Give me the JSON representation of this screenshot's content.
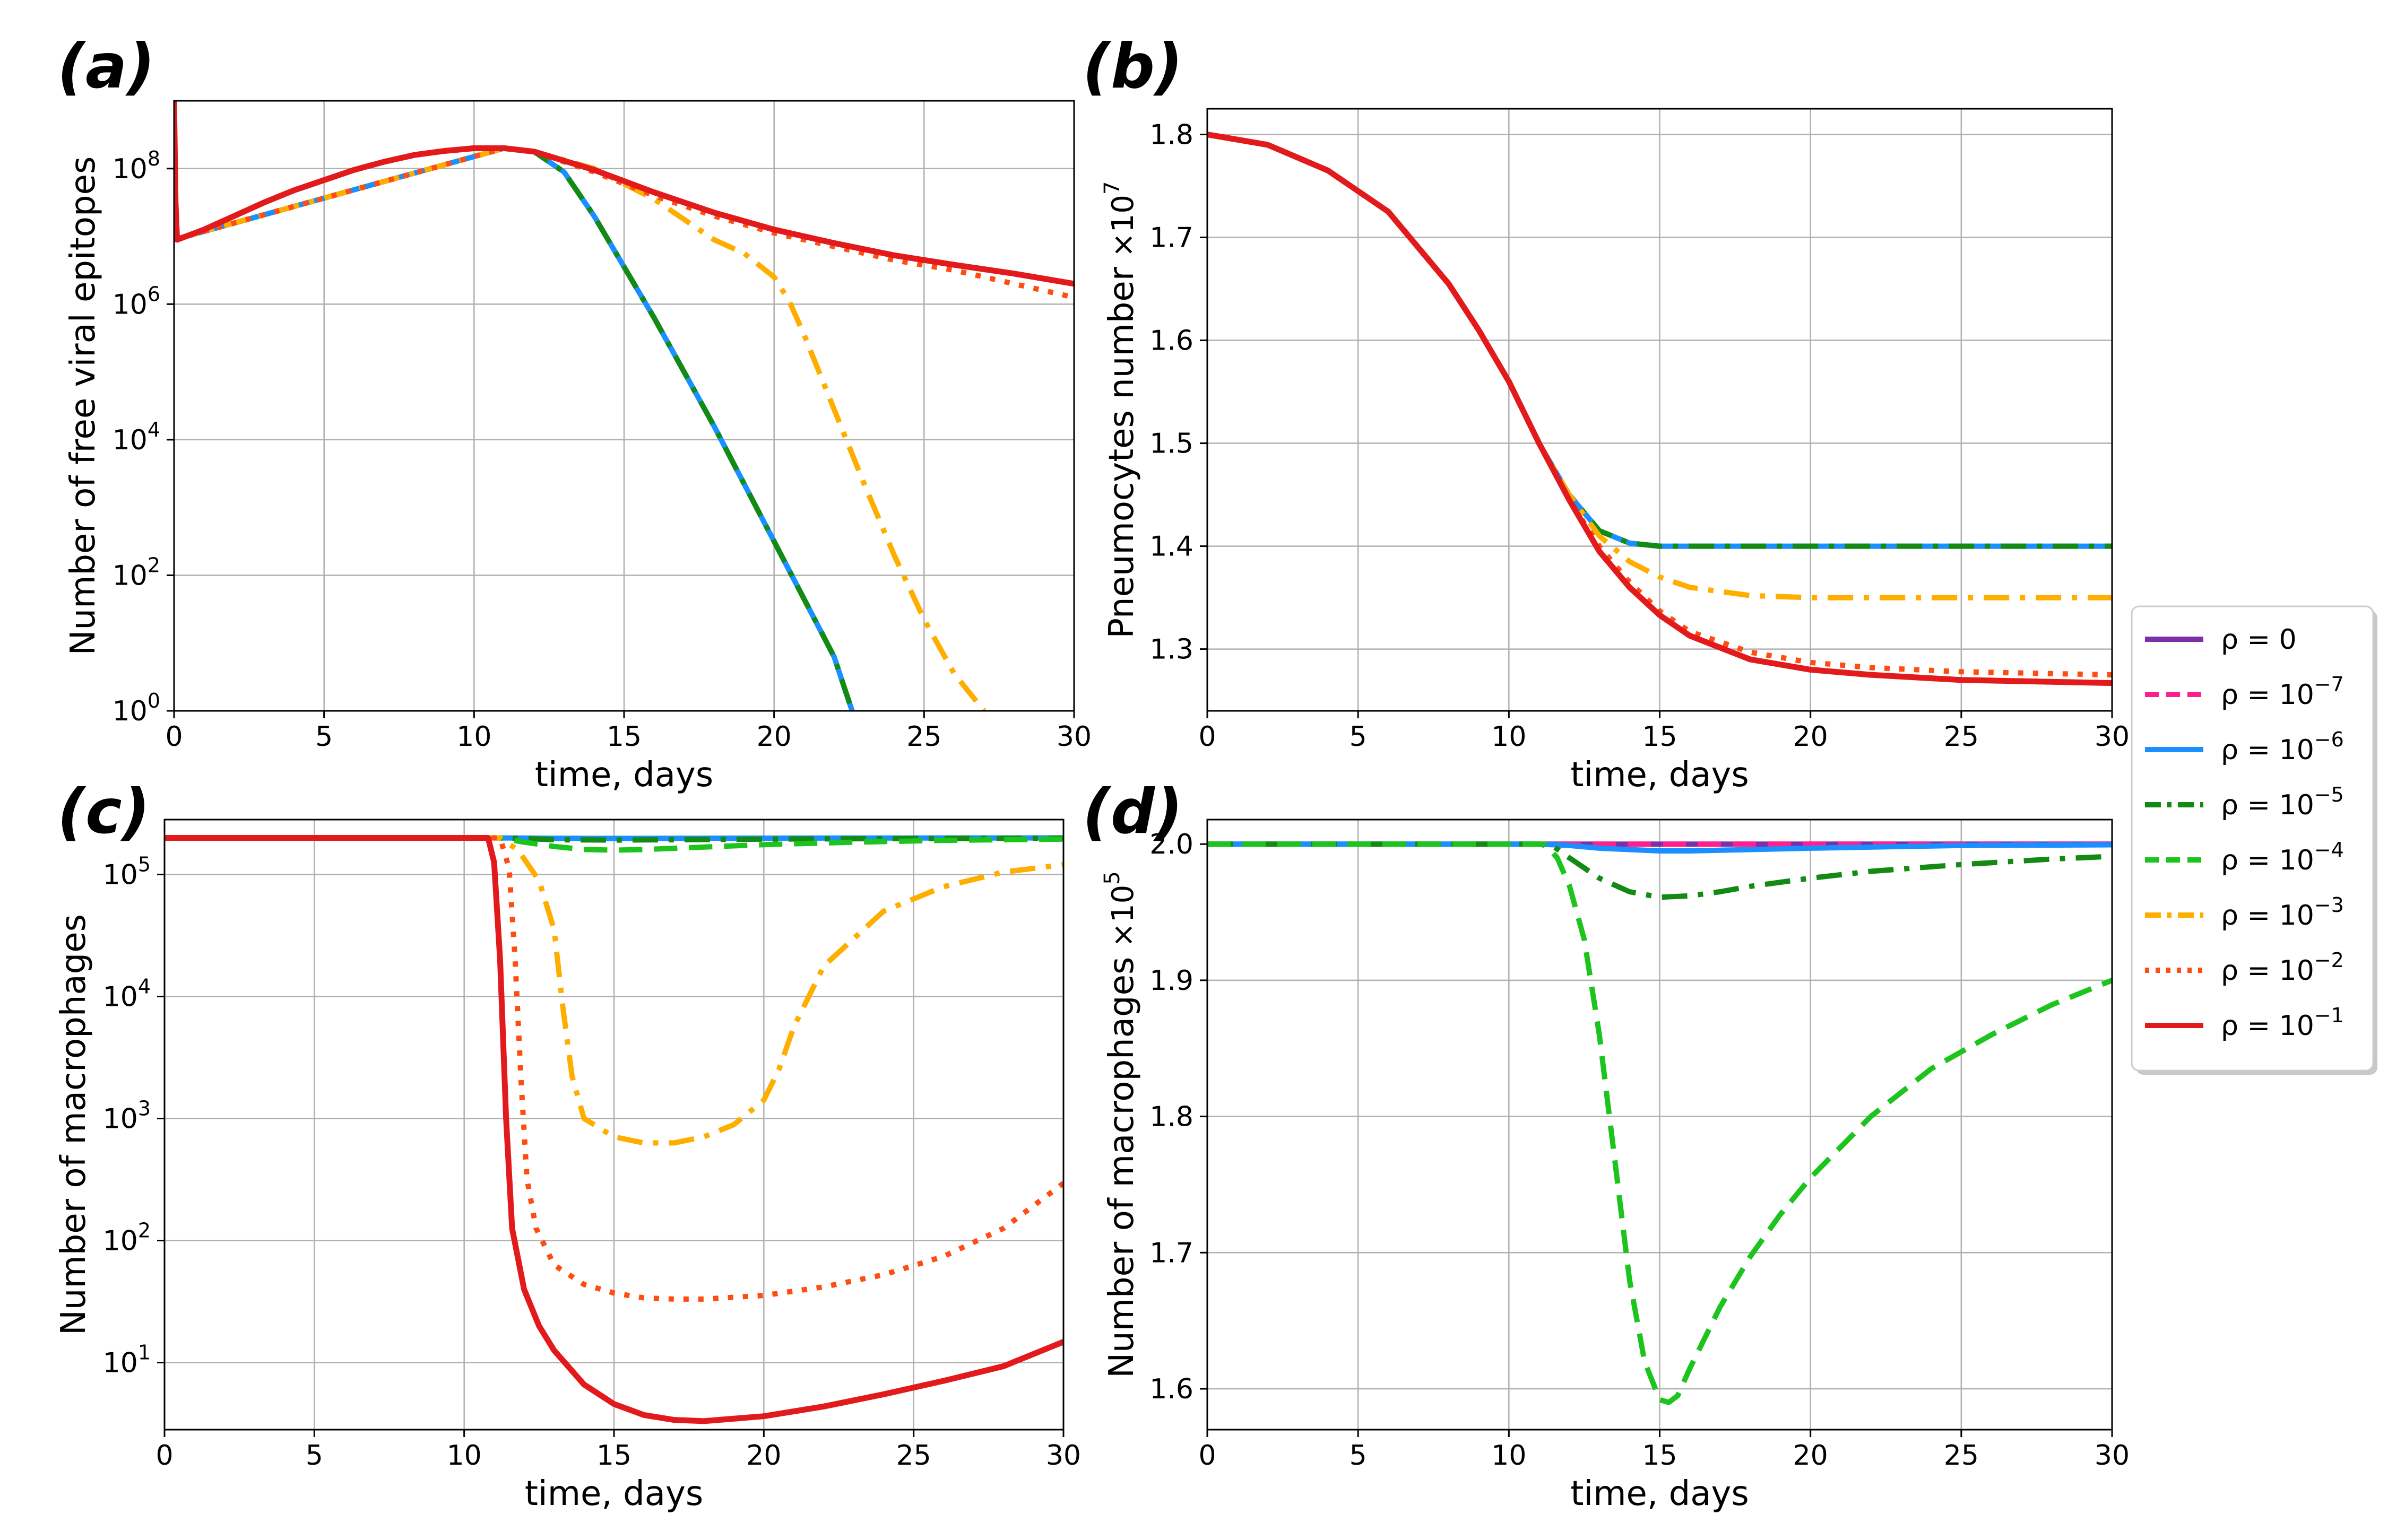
{
  "series_styles": [
    {
      "key": "r0",
      "color": "#7b2fa8",
      "dash": "none"
    },
    {
      "key": "r7",
      "color": "#ff1f8e",
      "dash": "dash"
    },
    {
      "key": "r6",
      "color": "#1a8fff",
      "dash": "none"
    },
    {
      "key": "r5",
      "color": "#138a13",
      "dash": "dashdot"
    },
    {
      "key": "r4",
      "color": "#1ec41e",
      "dash": "dash"
    },
    {
      "key": "r3",
      "color": "#ffae00",
      "dash": "dashdot"
    },
    {
      "key": "r2",
      "color": "#ff4d12",
      "dash": "dot"
    },
    {
      "key": "r1",
      "color": "#e31a1c",
      "dash": "none"
    }
  ],
  "legend": [
    {
      "prefix": "ρ = ",
      "base": "0",
      "exp": ""
    },
    {
      "prefix": "ρ = ",
      "base": "10",
      "exp": "−7"
    },
    {
      "prefix": "ρ = ",
      "base": "10",
      "exp": "−6"
    },
    {
      "prefix": "ρ = ",
      "base": "10",
      "exp": "−5"
    },
    {
      "prefix": "ρ = ",
      "base": "10",
      "exp": "−4"
    },
    {
      "prefix": "ρ = ",
      "base": "10",
      "exp": "−3"
    },
    {
      "prefix": "ρ = ",
      "base": "10",
      "exp": "−2"
    },
    {
      "prefix": "ρ = ",
      "base": "10",
      "exp": "−1"
    }
  ],
  "chart_data": [
    {
      "id": "a",
      "label": "(a)",
      "type": "line",
      "yscale": "log",
      "xlabel": "time, days",
      "ylabel": "Number of free viral epitopes",
      "xlim": [
        0,
        30
      ],
      "ylim": [
        0,
        9
      ],
      "xticks": [
        0,
        5,
        10,
        15,
        20,
        25,
        30
      ],
      "yticks": [
        {
          "v": 0,
          "b": "10",
          "e": "0"
        },
        {
          "v": 2,
          "b": "10",
          "e": "2"
        },
        {
          "v": 4,
          "b": "10",
          "e": "4"
        },
        {
          "v": 6,
          "b": "10",
          "e": "6"
        },
        {
          "v": 8,
          "b": "10",
          "e": "8"
        }
      ],
      "series": [
        {
          "key": "r6",
          "x": [
            0,
            11,
            12,
            13,
            14,
            15,
            16,
            17,
            18,
            19,
            20,
            21,
            22,
            22.6
          ],
          "y": [
            6.95,
            8.3,
            8.25,
            7.95,
            7.3,
            6.55,
            5.8,
            5.0,
            4.2,
            3.35,
            2.5,
            1.65,
            0.8,
            0
          ]
        },
        {
          "key": "r5",
          "x": [
            0,
            11,
            12,
            13,
            14,
            15,
            16,
            17,
            18,
            19,
            20,
            21,
            22,
            22.6
          ],
          "y": [
            6.95,
            8.3,
            8.25,
            7.95,
            7.3,
            6.55,
            5.8,
            5.0,
            4.2,
            3.35,
            2.5,
            1.65,
            0.8,
            0
          ]
        },
        {
          "key": "r3",
          "x": [
            0,
            11,
            12,
            14,
            16,
            18,
            19,
            20,
            20.5,
            21,
            22,
            23,
            24,
            25,
            26,
            27
          ],
          "y": [
            6.95,
            8.3,
            8.25,
            8.0,
            7.55,
            6.95,
            6.75,
            6.4,
            6.05,
            5.55,
            4.45,
            3.35,
            2.3,
            1.35,
            0.55,
            0
          ]
        },
        {
          "key": "r2",
          "x": [
            0,
            11,
            12,
            14,
            16,
            18,
            20,
            22,
            24,
            26,
            28,
            30
          ],
          "y": [
            6.95,
            8.3,
            8.25,
            7.95,
            7.6,
            7.3,
            7.05,
            6.85,
            6.65,
            6.5,
            6.3,
            6.1
          ]
        },
        {
          "key": "r1",
          "x": [
            0,
            0.05,
            0.1,
            1,
            2,
            3,
            4,
            5,
            6,
            7,
            8,
            9,
            10,
            11,
            12,
            14,
            16,
            18,
            20,
            22,
            24,
            26,
            28,
            30
          ],
          "y": [
            9.0,
            7.5,
            6.95,
            7.1,
            7.3,
            7.5,
            7.68,
            7.83,
            7.98,
            8.1,
            8.2,
            8.26,
            8.3,
            8.3,
            8.25,
            7.98,
            7.65,
            7.35,
            7.1,
            6.9,
            6.72,
            6.58,
            6.45,
            6.3
          ]
        }
      ]
    },
    {
      "id": "b",
      "label": "(b)",
      "type": "line",
      "yscale": "linear",
      "xlabel": "time, days",
      "ylabel": "Pneumocytes number",
      "ylabel_factor": {
        "base": "×10",
        "exp": "7"
      },
      "xlim": [
        0,
        30
      ],
      "ylim": [
        1.24,
        1.825
      ],
      "xticks": [
        0,
        5,
        10,
        15,
        20,
        25,
        30
      ],
      "yticks": [
        {
          "v": 1.3,
          "t": "1.3"
        },
        {
          "v": 1.4,
          "t": "1.4"
        },
        {
          "v": 1.5,
          "t": "1.5"
        },
        {
          "v": 1.6,
          "t": "1.6"
        },
        {
          "v": 1.7,
          "t": "1.7"
        },
        {
          "v": 1.8,
          "t": "1.8"
        }
      ],
      "series": [
        {
          "key": "r6",
          "x": [
            0,
            2,
            4,
            6,
            8,
            9,
            10,
            11,
            12,
            13,
            14,
            15,
            16,
            20,
            25,
            30
          ],
          "y": [
            1.8,
            1.79,
            1.765,
            1.725,
            1.655,
            1.61,
            1.56,
            1.5,
            1.45,
            1.415,
            1.403,
            1.4,
            1.4,
            1.4,
            1.4,
            1.4
          ]
        },
        {
          "key": "r5",
          "x": [
            0,
            2,
            4,
            6,
            8,
            9,
            10,
            11,
            12,
            13,
            14,
            15,
            16,
            20,
            25,
            30
          ],
          "y": [
            1.8,
            1.79,
            1.765,
            1.725,
            1.655,
            1.61,
            1.56,
            1.5,
            1.45,
            1.415,
            1.403,
            1.4,
            1.4,
            1.4,
            1.4,
            1.4
          ]
        },
        {
          "key": "r3",
          "x": [
            0,
            2,
            4,
            6,
            8,
            9,
            10,
            11,
            12,
            13,
            14,
            15,
            16,
            18,
            20,
            22,
            25,
            30
          ],
          "y": [
            1.8,
            1.79,
            1.765,
            1.725,
            1.655,
            1.61,
            1.56,
            1.5,
            1.45,
            1.41,
            1.385,
            1.37,
            1.36,
            1.352,
            1.35,
            1.35,
            1.35,
            1.35
          ]
        },
        {
          "key": "r2",
          "x": [
            0,
            2,
            4,
            6,
            8,
            9,
            10,
            11,
            12,
            13,
            14,
            15,
            16,
            18,
            20,
            22,
            25,
            30
          ],
          "y": [
            1.8,
            1.79,
            1.765,
            1.725,
            1.655,
            1.61,
            1.56,
            1.5,
            1.445,
            1.4,
            1.365,
            1.337,
            1.317,
            1.297,
            1.287,
            1.282,
            1.278,
            1.275
          ]
        },
        {
          "key": "r1",
          "x": [
            0,
            2,
            4,
            6,
            8,
            9,
            10,
            11,
            12,
            13,
            14,
            15,
            16,
            18,
            20,
            22,
            25,
            30
          ],
          "y": [
            1.8,
            1.79,
            1.765,
            1.725,
            1.655,
            1.61,
            1.56,
            1.5,
            1.445,
            1.395,
            1.36,
            1.333,
            1.313,
            1.29,
            1.28,
            1.275,
            1.27,
            1.267
          ]
        }
      ]
    },
    {
      "id": "c",
      "label": "(c)",
      "type": "line",
      "yscale": "log",
      "xlabel": "time, days",
      "ylabel": "Number of macrophages",
      "xlim": [
        0,
        30
      ],
      "ylim": [
        0.45,
        5.45
      ],
      "xticks": [
        0,
        5,
        10,
        15,
        20,
        25,
        30
      ],
      "yticks": [
        {
          "v": 1,
          "b": "10",
          "e": "1"
        },
        {
          "v": 2,
          "b": "10",
          "e": "2"
        },
        {
          "v": 3,
          "b": "10",
          "e": "3"
        },
        {
          "v": 4,
          "b": "10",
          "e": "4"
        },
        {
          "v": 5,
          "b": "10",
          "e": "5"
        }
      ],
      "series": [
        {
          "key": "r6",
          "x": [
            0,
            11,
            13,
            15,
            17,
            20,
            25,
            30
          ],
          "y": [
            5.3,
            5.3,
            5.297,
            5.296,
            5.297,
            5.298,
            5.299,
            5.3
          ]
        },
        {
          "key": "r5",
          "x": [
            0,
            11,
            12,
            13,
            15,
            17,
            20,
            25,
            30
          ],
          "y": [
            5.3,
            5.3,
            5.295,
            5.285,
            5.282,
            5.285,
            5.29,
            5.295,
            5.298
          ]
        },
        {
          "key": "r4",
          "x": [
            0,
            11.2,
            12,
            13,
            14,
            15,
            16,
            18,
            20,
            23,
            26,
            30
          ],
          "y": [
            5.3,
            5.3,
            5.265,
            5.23,
            5.205,
            5.2,
            5.205,
            5.225,
            5.245,
            5.265,
            5.28,
            5.29
          ]
        },
        {
          "key": "r3",
          "x": [
            0,
            11.2,
            11.8,
            12.5,
            13,
            13.3,
            13.6,
            14,
            15,
            16,
            17,
            18,
            19,
            20,
            20.5,
            21,
            22,
            24,
            26,
            28,
            30
          ],
          "y": [
            5.3,
            5.3,
            5.2,
            4.95,
            4.55,
            3.9,
            3.35,
            3.0,
            2.85,
            2.8,
            2.8,
            2.85,
            2.95,
            3.15,
            3.4,
            3.75,
            4.25,
            4.7,
            4.9,
            5.02,
            5.08
          ]
        },
        {
          "key": "r2",
          "x": [
            0,
            11.2,
            11.5,
            11.7,
            11.9,
            12.1,
            12.4,
            13,
            14,
            15,
            16,
            17,
            18,
            20,
            22,
            24,
            26,
            28,
            30
          ],
          "y": [
            5.3,
            5.3,
            5.05,
            4.3,
            3.3,
            2.5,
            2.1,
            1.8,
            1.64,
            1.57,
            1.53,
            1.52,
            1.52,
            1.55,
            1.62,
            1.72,
            1.87,
            2.1,
            2.47
          ]
        },
        {
          "key": "r1",
          "x": [
            0,
            10.8,
            11,
            11.2,
            11.4,
            11.6,
            12,
            12.5,
            13,
            14,
            15,
            16,
            17,
            18,
            20,
            22,
            24,
            26,
            28,
            30
          ],
          "y": [
            5.3,
            5.3,
            5.1,
            4.3,
            3.0,
            2.1,
            1.6,
            1.3,
            1.1,
            0.82,
            0.66,
            0.57,
            0.53,
            0.52,
            0.56,
            0.64,
            0.74,
            0.85,
            0.97,
            1.17
          ]
        }
      ]
    },
    {
      "id": "d",
      "label": "(d)",
      "type": "line",
      "yscale": "linear",
      "xlabel": "time, days",
      "ylabel": "Number of macrophages",
      "ylabel_factor": {
        "base": "×10",
        "exp": "5"
      },
      "xlim": [
        0,
        30
      ],
      "ylim": [
        1.57,
        2.018
      ],
      "xticks": [
        0,
        5,
        10,
        15,
        20,
        25,
        30
      ],
      "yticks": [
        {
          "v": 1.6,
          "t": "1.6"
        },
        {
          "v": 1.7,
          "t": "1.7"
        },
        {
          "v": 1.8,
          "t": "1.8"
        },
        {
          "v": 1.9,
          "t": "1.9"
        },
        {
          "v": 2.0,
          "t": "2.0"
        }
      ],
      "series": [
        {
          "key": "r0",
          "x": [
            0,
            30
          ],
          "y": [
            2.0,
            2.0
          ]
        },
        {
          "key": "r7",
          "x": [
            0,
            30
          ],
          "y": [
            2.0,
            2.0
          ]
        },
        {
          "key": "r6",
          "x": [
            0,
            11,
            12,
            13,
            14,
            15,
            16,
            18,
            20,
            25,
            30
          ],
          "y": [
            2.0,
            2.0,
            1.999,
            1.997,
            1.996,
            1.995,
            1.995,
            1.996,
            1.997,
            1.999,
            1.9995
          ]
        },
        {
          "key": "r5",
          "x": [
            0,
            11,
            11.5,
            12,
            13,
            14,
            15,
            16,
            17,
            18,
            20,
            22,
            25,
            28,
            30
          ],
          "y": [
            2.0,
            2.0,
            1.998,
            1.99,
            1.975,
            1.965,
            1.961,
            1.962,
            1.965,
            1.969,
            1.975,
            1.98,
            1.985,
            1.989,
            1.991
          ]
        },
        {
          "key": "r4",
          "x": [
            0,
            11.2,
            11.6,
            12,
            12.5,
            13,
            13.5,
            14,
            14.5,
            15,
            15.3,
            15.6,
            16,
            17,
            18,
            19,
            20,
            22,
            24,
            26,
            28,
            30
          ],
          "y": [
            2.0,
            2.0,
            1.99,
            1.97,
            1.93,
            1.86,
            1.77,
            1.68,
            1.62,
            1.592,
            1.59,
            1.595,
            1.615,
            1.66,
            1.697,
            1.728,
            1.755,
            1.8,
            1.835,
            1.86,
            1.882,
            1.9
          ]
        }
      ]
    }
  ]
}
